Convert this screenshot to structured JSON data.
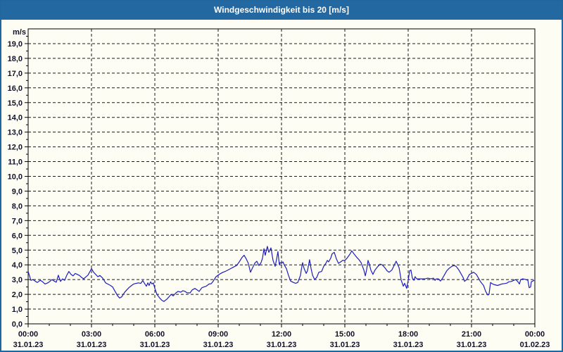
{
  "window": {
    "title": "Windgeschwindigkeit bis 20 [m/s]"
  },
  "colors": {
    "titlebar_bg": "#2368a1",
    "title_text": "#ffffff",
    "window_bg": "#fdfdf4",
    "window_border": "#2067a0",
    "plot_frame": "#000000",
    "gridline": "#1a1a1a",
    "axis_text": "#10102a",
    "line": "#1d1dbe"
  },
  "chart_data": {
    "type": "line",
    "title": "Windgeschwindigkeit bis 20 [m/s]",
    "ylabel": "m/s",
    "xlabel": "",
    "ylim": [
      0,
      20
    ],
    "y_major_step": 1.0,
    "y_minor_step": 0.5,
    "x_hours_range": [
      0,
      24
    ],
    "x_minor_step_hours": 1,
    "grid": "dashed",
    "legend_position": "none",
    "y_tick_labels": [
      "0,0",
      "1,0",
      "2,0",
      "3,0",
      "4,0",
      "5,0",
      "6,0",
      "7,0",
      "8,0",
      "9,0",
      "10,0",
      "11,0",
      "12,0",
      "13,0",
      "14,0",
      "15,0",
      "16,0",
      "17,0",
      "18,0",
      "19,0"
    ],
    "x_major_ticks": [
      {
        "hour": 0,
        "time": "00:00",
        "date": "31.01.23"
      },
      {
        "hour": 3,
        "time": "03:00",
        "date": "31.01.23"
      },
      {
        "hour": 6,
        "time": "06:00",
        "date": "31.01.23"
      },
      {
        "hour": 9,
        "time": "09:00",
        "date": "31.01.23"
      },
      {
        "hour": 12,
        "time": "12:00",
        "date": "31.01.23"
      },
      {
        "hour": 15,
        "time": "15:00",
        "date": "31.01.23"
      },
      {
        "hour": 18,
        "time": "18:00",
        "date": "31.01.23"
      },
      {
        "hour": 21,
        "time": "21:00",
        "date": "31.01.23"
      },
      {
        "hour": 24,
        "time": "00:00",
        "date": "01.02.23"
      }
    ],
    "series": [
      {
        "name": "Windgeschwindigkeit",
        "unit": "m/s",
        "color": "#1d1dbe",
        "points": [
          [
            0.0,
            3.55
          ],
          [
            0.13,
            2.95
          ],
          [
            0.23,
            3.0
          ],
          [
            0.33,
            2.9
          ],
          [
            0.43,
            2.8
          ],
          [
            0.57,
            2.95
          ],
          [
            0.67,
            2.87
          ],
          [
            0.8,
            2.7
          ],
          [
            0.93,
            2.78
          ],
          [
            1.03,
            2.88
          ],
          [
            1.13,
            3.0
          ],
          [
            1.23,
            2.9
          ],
          [
            1.33,
            2.82
          ],
          [
            1.43,
            3.3
          ],
          [
            1.53,
            2.88
          ],
          [
            1.63,
            3.05
          ],
          [
            1.73,
            2.95
          ],
          [
            1.83,
            3.3
          ],
          [
            1.93,
            3.55
          ],
          [
            2.03,
            3.35
          ],
          [
            2.13,
            3.25
          ],
          [
            2.23,
            3.42
          ],
          [
            2.33,
            3.35
          ],
          [
            2.43,
            3.28
          ],
          [
            2.53,
            3.15
          ],
          [
            2.63,
            3.05
          ],
          [
            2.73,
            3.18
          ],
          [
            2.83,
            3.3
          ],
          [
            2.93,
            3.55
          ],
          [
            3.0,
            3.75
          ],
          [
            3.1,
            3.5
          ],
          [
            3.2,
            3.35
          ],
          [
            3.3,
            3.2
          ],
          [
            3.4,
            3.28
          ],
          [
            3.53,
            3.1
          ],
          [
            3.67,
            2.78
          ],
          [
            3.77,
            2.7
          ],
          [
            3.9,
            2.6
          ],
          [
            4.0,
            2.5
          ],
          [
            4.1,
            2.25
          ],
          [
            4.23,
            1.92
          ],
          [
            4.33,
            1.75
          ],
          [
            4.43,
            1.83
          ],
          [
            4.57,
            2.14
          ],
          [
            4.67,
            2.3
          ],
          [
            4.77,
            2.45
          ],
          [
            4.9,
            2.6
          ],
          [
            5.0,
            2.7
          ],
          [
            5.1,
            2.74
          ],
          [
            5.23,
            2.78
          ],
          [
            5.33,
            2.74
          ],
          [
            5.43,
            2.93
          ],
          [
            5.53,
            2.7
          ],
          [
            5.6,
            2.55
          ],
          [
            5.67,
            2.78
          ],
          [
            5.73,
            2.6
          ],
          [
            5.8,
            2.85
          ],
          [
            5.87,
            2.7
          ],
          [
            5.93,
            2.78
          ],
          [
            6.0,
            2.4
          ],
          [
            6.1,
            2.0
          ],
          [
            6.23,
            1.75
          ],
          [
            6.33,
            1.6
          ],
          [
            6.43,
            1.52
          ],
          [
            6.57,
            1.67
          ],
          [
            6.67,
            1.83
          ],
          [
            6.77,
            2.0
          ],
          [
            6.87,
            1.9
          ],
          [
            7.0,
            2.1
          ],
          [
            7.1,
            2.2
          ],
          [
            7.23,
            2.15
          ],
          [
            7.33,
            2.25
          ],
          [
            7.43,
            2.2
          ],
          [
            7.53,
            2.1
          ],
          [
            7.67,
            2.1
          ],
          [
            7.77,
            2.3
          ],
          [
            7.9,
            2.4
          ],
          [
            8.0,
            2.3
          ],
          [
            8.1,
            2.2
          ],
          [
            8.23,
            2.45
          ],
          [
            8.33,
            2.5
          ],
          [
            8.43,
            2.55
          ],
          [
            8.57,
            2.7
          ],
          [
            8.67,
            2.72
          ],
          [
            8.77,
            2.9
          ],
          [
            8.9,
            3.2
          ],
          [
            9.0,
            3.3
          ],
          [
            9.1,
            3.4
          ],
          [
            9.23,
            3.5
          ],
          [
            9.33,
            3.55
          ],
          [
            9.47,
            3.65
          ],
          [
            9.6,
            3.75
          ],
          [
            9.73,
            3.85
          ],
          [
            9.87,
            3.95
          ],
          [
            10.0,
            4.2
          ],
          [
            10.13,
            4.5
          ],
          [
            10.23,
            4.65
          ],
          [
            10.33,
            4.4
          ],
          [
            10.43,
            4.1
          ],
          [
            10.53,
            3.5
          ],
          [
            10.63,
            3.8
          ],
          [
            10.73,
            4.1
          ],
          [
            10.83,
            4.25
          ],
          [
            10.93,
            3.95
          ],
          [
            11.03,
            4.15
          ],
          [
            11.1,
            4.45
          ],
          [
            11.17,
            5.1
          ],
          [
            11.23,
            4.65
          ],
          [
            11.33,
            5.25
          ],
          [
            11.4,
            4.85
          ],
          [
            11.5,
            5.15
          ],
          [
            11.6,
            4.3
          ],
          [
            11.7,
            3.9
          ],
          [
            11.77,
            4.4
          ],
          [
            11.83,
            4.9
          ],
          [
            11.9,
            4.0
          ],
          [
            11.93,
            4.15
          ],
          [
            12.0,
            4.1
          ],
          [
            12.07,
            4.2
          ],
          [
            12.13,
            4.0
          ],
          [
            12.23,
            3.75
          ],
          [
            12.33,
            3.3
          ],
          [
            12.43,
            2.9
          ],
          [
            12.57,
            2.8
          ],
          [
            12.67,
            2.75
          ],
          [
            12.77,
            2.8
          ],
          [
            12.9,
            3.3
          ],
          [
            12.93,
            3.6
          ],
          [
            13.0,
            4.15
          ],
          [
            13.07,
            3.75
          ],
          [
            13.17,
            3.42
          ],
          [
            13.23,
            3.6
          ],
          [
            13.33,
            4.35
          ],
          [
            13.4,
            3.75
          ],
          [
            13.47,
            3.3
          ],
          [
            13.57,
            3.0
          ],
          [
            13.67,
            3.15
          ],
          [
            13.77,
            3.5
          ],
          [
            13.9,
            3.55
          ],
          [
            14.0,
            3.9
          ],
          [
            14.1,
            4.1
          ],
          [
            14.17,
            4.3
          ],
          [
            14.23,
            4.2
          ],
          [
            14.33,
            4.45
          ],
          [
            14.4,
            4.75
          ],
          [
            14.5,
            4.85
          ],
          [
            14.6,
            4.4
          ],
          [
            14.7,
            4.1
          ],
          [
            14.8,
            4.2
          ],
          [
            14.9,
            4.3
          ],
          [
            15.0,
            4.3
          ],
          [
            15.1,
            4.45
          ],
          [
            15.23,
            4.7
          ],
          [
            15.33,
            4.95
          ],
          [
            15.43,
            4.75
          ],
          [
            15.57,
            4.5
          ],
          [
            15.67,
            4.35
          ],
          [
            15.77,
            4.15
          ],
          [
            15.9,
            3.65
          ],
          [
            15.97,
            3.25
          ],
          [
            16.03,
            3.65
          ],
          [
            16.1,
            4.3
          ],
          [
            16.17,
            4.0
          ],
          [
            16.23,
            3.65
          ],
          [
            16.33,
            3.35
          ],
          [
            16.43,
            3.65
          ],
          [
            16.57,
            3.9
          ],
          [
            16.67,
            4.05
          ],
          [
            16.77,
            4.0
          ],
          [
            16.9,
            3.8
          ],
          [
            17.0,
            3.6
          ],
          [
            17.1,
            3.5
          ],
          [
            17.23,
            3.65
          ],
          [
            17.33,
            3.95
          ],
          [
            17.43,
            4.25
          ],
          [
            17.57,
            3.8
          ],
          [
            17.67,
            2.95
          ],
          [
            17.77,
            2.55
          ],
          [
            17.83,
            2.75
          ],
          [
            17.93,
            2.4
          ],
          [
            18.0,
            2.95
          ],
          [
            18.07,
            3.6
          ],
          [
            18.13,
            3.65
          ],
          [
            18.2,
            3.1
          ],
          [
            18.27,
            2.95
          ],
          [
            18.33,
            3.2
          ],
          [
            18.4,
            3.05
          ],
          [
            18.53,
            3.05
          ],
          [
            18.67,
            3.05
          ],
          [
            18.8,
            3.05
          ],
          [
            18.93,
            3.1
          ],
          [
            19.07,
            3.05
          ],
          [
            19.2,
            3.1
          ],
          [
            19.27,
            2.95
          ],
          [
            19.33,
            3.05
          ],
          [
            19.43,
            3.05
          ],
          [
            19.53,
            2.9
          ],
          [
            19.63,
            3.1
          ],
          [
            19.73,
            3.35
          ],
          [
            19.83,
            3.6
          ],
          [
            19.93,
            3.75
          ],
          [
            20.07,
            3.9
          ],
          [
            20.17,
            3.95
          ],
          [
            20.27,
            3.9
          ],
          [
            20.4,
            3.65
          ],
          [
            20.5,
            3.4
          ],
          [
            20.6,
            3.15
          ],
          [
            20.67,
            2.88
          ],
          [
            20.77,
            3.0
          ],
          [
            20.9,
            3.35
          ],
          [
            21.0,
            3.42
          ],
          [
            21.1,
            3.5
          ],
          [
            21.23,
            3.35
          ],
          [
            21.33,
            3.1
          ],
          [
            21.43,
            2.85
          ],
          [
            21.57,
            2.6
          ],
          [
            21.67,
            2.2
          ],
          [
            21.77,
            1.95
          ],
          [
            21.83,
            2.0
          ],
          [
            21.9,
            2.8
          ],
          [
            22.0,
            2.7
          ],
          [
            22.1,
            2.65
          ],
          [
            22.23,
            2.6
          ],
          [
            22.33,
            2.65
          ],
          [
            22.43,
            2.7
          ],
          [
            22.57,
            2.73
          ],
          [
            22.67,
            2.76
          ],
          [
            22.77,
            2.85
          ],
          [
            22.9,
            2.88
          ],
          [
            23.0,
            2.95
          ],
          [
            23.1,
            3.0
          ],
          [
            23.2,
            2.85
          ],
          [
            23.27,
            2.7
          ],
          [
            23.33,
            3.0
          ],
          [
            23.43,
            3.05
          ],
          [
            23.57,
            3.0
          ],
          [
            23.67,
            2.95
          ],
          [
            23.73,
            2.45
          ],
          [
            23.8,
            2.5
          ],
          [
            23.83,
            2.85
          ],
          [
            23.9,
            2.9
          ],
          [
            23.97,
            2.95
          ]
        ]
      }
    ]
  }
}
